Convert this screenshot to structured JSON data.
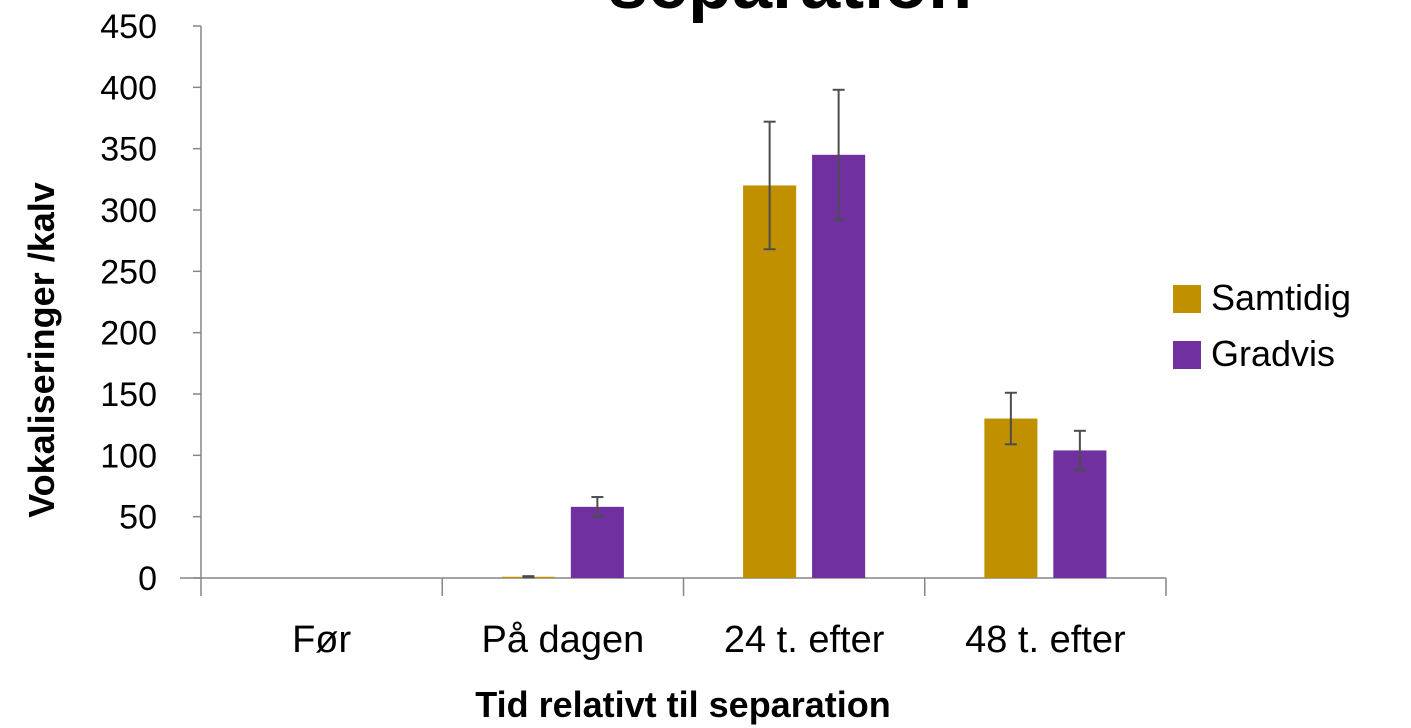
{
  "chart_data": {
    "type": "bar",
    "title": "separation",
    "xlabel": "Tid relativt til separation",
    "ylabel": "Vokaliseringer /kalv",
    "ylim": [
      0,
      450
    ],
    "yticks": [
      0,
      50,
      100,
      150,
      200,
      250,
      300,
      350,
      400,
      450
    ],
    "categories": [
      "Før",
      "På dagen",
      "24 t. efter",
      "48 t. efter"
    ],
    "series": [
      {
        "name": "Samtidig",
        "color": "#C09000",
        "values": [
          0,
          1,
          320,
          130
        ],
        "errors": [
          0,
          0.5,
          52,
          21
        ]
      },
      {
        "name": "Gradvis",
        "color": "#7030A0",
        "values": [
          0,
          58,
          345,
          104
        ],
        "errors": [
          0,
          8,
          53,
          16
        ]
      }
    ],
    "legend_position": "right",
    "grid": false
  }
}
